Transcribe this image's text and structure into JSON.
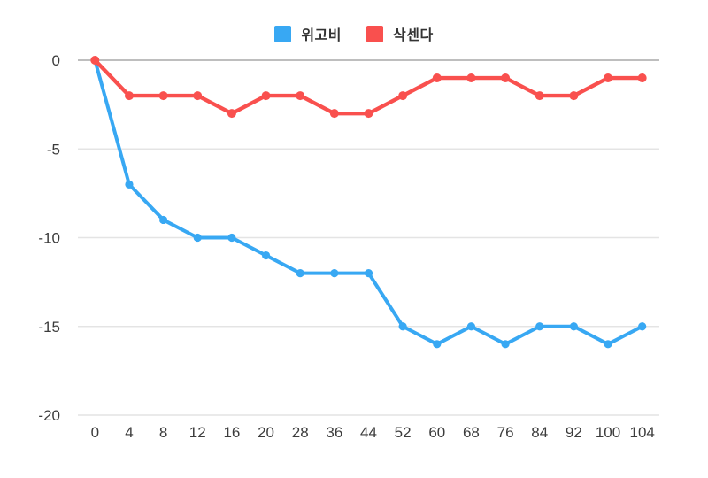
{
  "chart_data": {
    "type": "line",
    "title": "",
    "xlabel": "",
    "ylabel": "",
    "categories": [
      "0",
      "4",
      "8",
      "12",
      "16",
      "20",
      "28",
      "36",
      "44",
      "52",
      "60",
      "68",
      "76",
      "84",
      "92",
      "100",
      "104"
    ],
    "series": [
      {
        "name": "위고비",
        "color": "#38a8f3",
        "values": [
          0,
          -7,
          -9,
          -10,
          -10,
          -11,
          -12,
          -12,
          -12,
          -15,
          -16,
          -15,
          -16,
          -15,
          -15,
          -16,
          -15
        ]
      },
      {
        "name": "삭센다",
        "color": "#f9504e",
        "values": [
          0,
          -2,
          -2,
          -2,
          -3,
          -2,
          -2,
          -3,
          -3,
          -2,
          -1,
          -1,
          -1,
          -2,
          -2,
          -1,
          -1
        ]
      }
    ],
    "yticks": [
      0,
      -5,
      -10,
      -15,
      -20
    ],
    "ylim": [
      -20,
      0
    ],
    "legend_position": "top",
    "grid": true
  },
  "colors": {
    "background": "#ffffff",
    "grid_line": "#e4e4e4",
    "zero_line": "#a8a8a8",
    "axis_text": "#3c3c3c"
  }
}
